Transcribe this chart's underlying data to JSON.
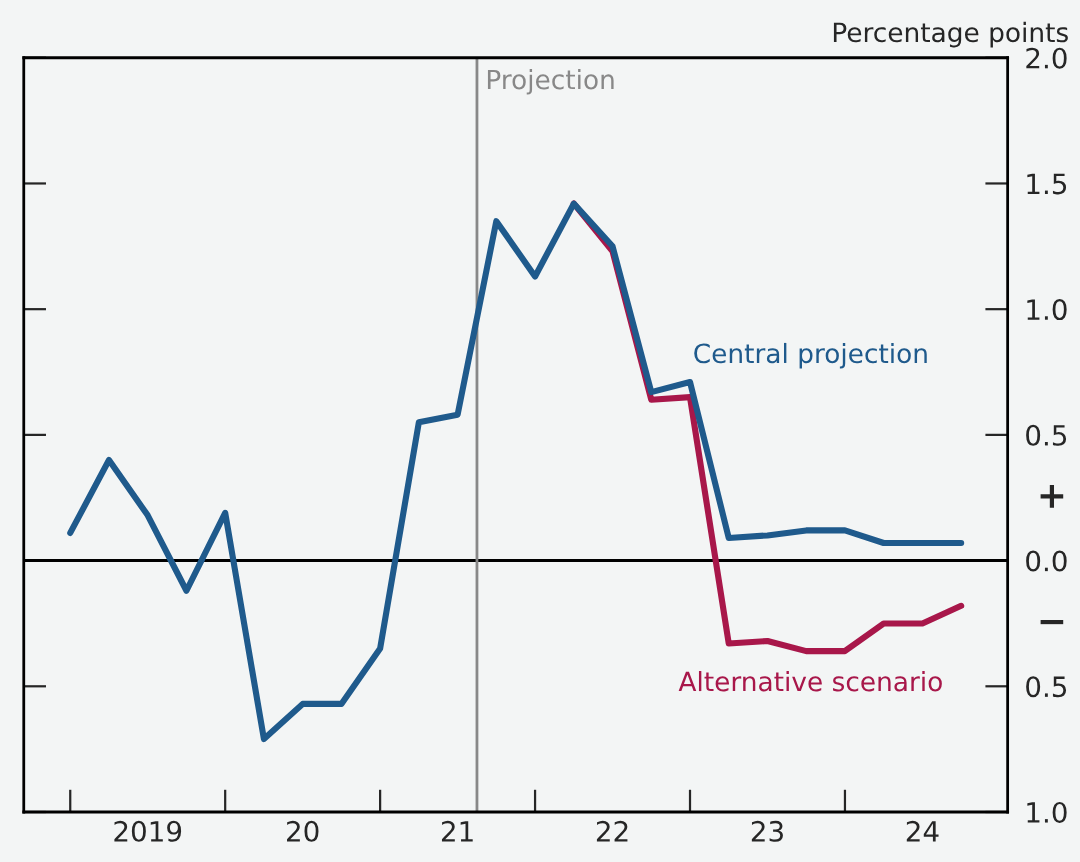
{
  "chart_data": {
    "type": "line",
    "ylabel": "Percentage points",
    "categories": [
      null,
      null,
      "2019",
      null,
      null,
      null,
      "20",
      null,
      null,
      null,
      "21",
      null,
      null,
      null,
      "22",
      null,
      null,
      null,
      "23",
      null,
      null,
      null,
      "24",
      null
    ],
    "series": [
      {
        "name": "Alternative scenario",
        "color": "#a8174a",
        "values": [
          null,
          null,
          null,
          null,
          null,
          null,
          null,
          null,
          null,
          null,
          null,
          null,
          null,
          1.42,
          1.23,
          0.64,
          0.65,
          -0.33,
          -0.32,
          -0.36,
          -0.36,
          -0.25,
          -0.25,
          -0.18
        ]
      },
      {
        "name": "Central projection",
        "color": "#1f5a8c",
        "values": [
          0.11,
          0.4,
          0.18,
          -0.12,
          0.19,
          -0.71,
          -0.57,
          -0.57,
          -0.35,
          0.55,
          0.58,
          1.35,
          1.13,
          1.42,
          1.25,
          0.67,
          0.71,
          0.09,
          0.1,
          0.12,
          0.12,
          0.07,
          0.07,
          0.07
        ]
      }
    ],
    "ylim": [
      -1.0,
      2.0
    ],
    "yticks": [
      {
        "value": -1.0,
        "label": "1.0"
      },
      {
        "value": -0.5,
        "label": "0.5"
      },
      {
        "value": 0.0,
        "label": "0.0"
      },
      {
        "value": 0.5,
        "label": "0.5"
      },
      {
        "value": 1.0,
        "label": "1.0"
      },
      {
        "value": 1.5,
        "label": "1.5"
      },
      {
        "value": 2.0,
        "label": "2.0"
      }
    ],
    "ref_lines": [
      {
        "axis": "y",
        "value": 0.0,
        "color": "#000000"
      }
    ],
    "annotations": [
      "Projection",
      "+",
      "−"
    ],
    "grid": false,
    "legend": false,
    "marker": "none",
    "line_style": "solid"
  }
}
